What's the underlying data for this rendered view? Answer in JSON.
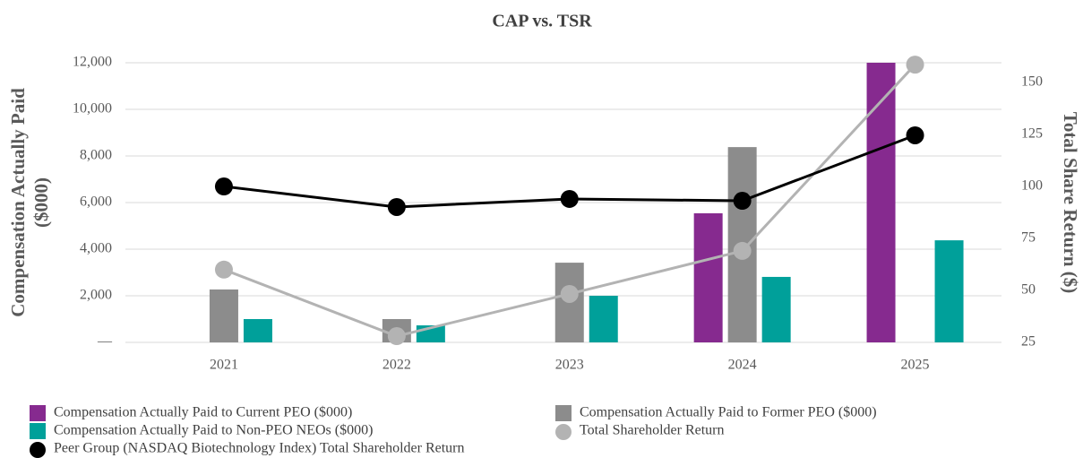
{
  "chart_data": {
    "type": "combo",
    "title": "CAP vs. TSR",
    "ylabel": [
      "Compensation Actually Paid",
      "($000)"
    ],
    "y2label": "Total Share Return ($)",
    "categories": [
      "2021",
      "2022",
      "2023",
      "2024",
      "2025"
    ],
    "ylim": [
      0,
      12000
    ],
    "yticks": [
      {
        "value": 0,
        "label": "—"
      },
      {
        "value": 2000,
        "label": "2,000"
      },
      {
        "value": 4000,
        "label": "4,000"
      },
      {
        "value": 6000,
        "label": "6,000"
      },
      {
        "value": 8000,
        "label": "8,000"
      },
      {
        "value": 10000,
        "label": "10,000"
      },
      {
        "value": 12000,
        "label": "12,000"
      }
    ],
    "y2lim": [
      25,
      159.5
    ],
    "y2ticks": [
      25,
      50,
      75,
      100,
      125,
      150
    ],
    "grid": true,
    "series": [
      {
        "name": "Compensation Actually Paid to Current PEO ($000)",
        "type": "bar",
        "color": "#862a8f",
        "values": [
          null,
          null,
          null,
          5540,
          12000
        ]
      },
      {
        "name": "Compensation Actually Paid to Former PEO ($000)",
        "type": "bar",
        "color": "#8c8c8c",
        "values": [
          2270,
          1000,
          3420,
          8380,
          null
        ]
      },
      {
        "name": "Compensation Actually Paid to Non-PEO NEOs ($000)",
        "type": "bar",
        "color": "#00a09a",
        "values": [
          1000,
          730,
          2000,
          2810,
          4380
        ]
      },
      {
        "name": "Total Shareholder Return",
        "type": "line",
        "axis": "y2",
        "color": "#b3b3b3",
        "values": [
          60,
          28,
          48.3,
          69,
          158.6
        ]
      },
      {
        "name": "Peer Group (NASDAQ Biotechnology Index) Total Shareholder Return",
        "type": "line",
        "axis": "y2",
        "color": "#000000",
        "values": [
          100,
          90.1,
          94,
          93.1,
          124.6
        ]
      }
    ]
  }
}
